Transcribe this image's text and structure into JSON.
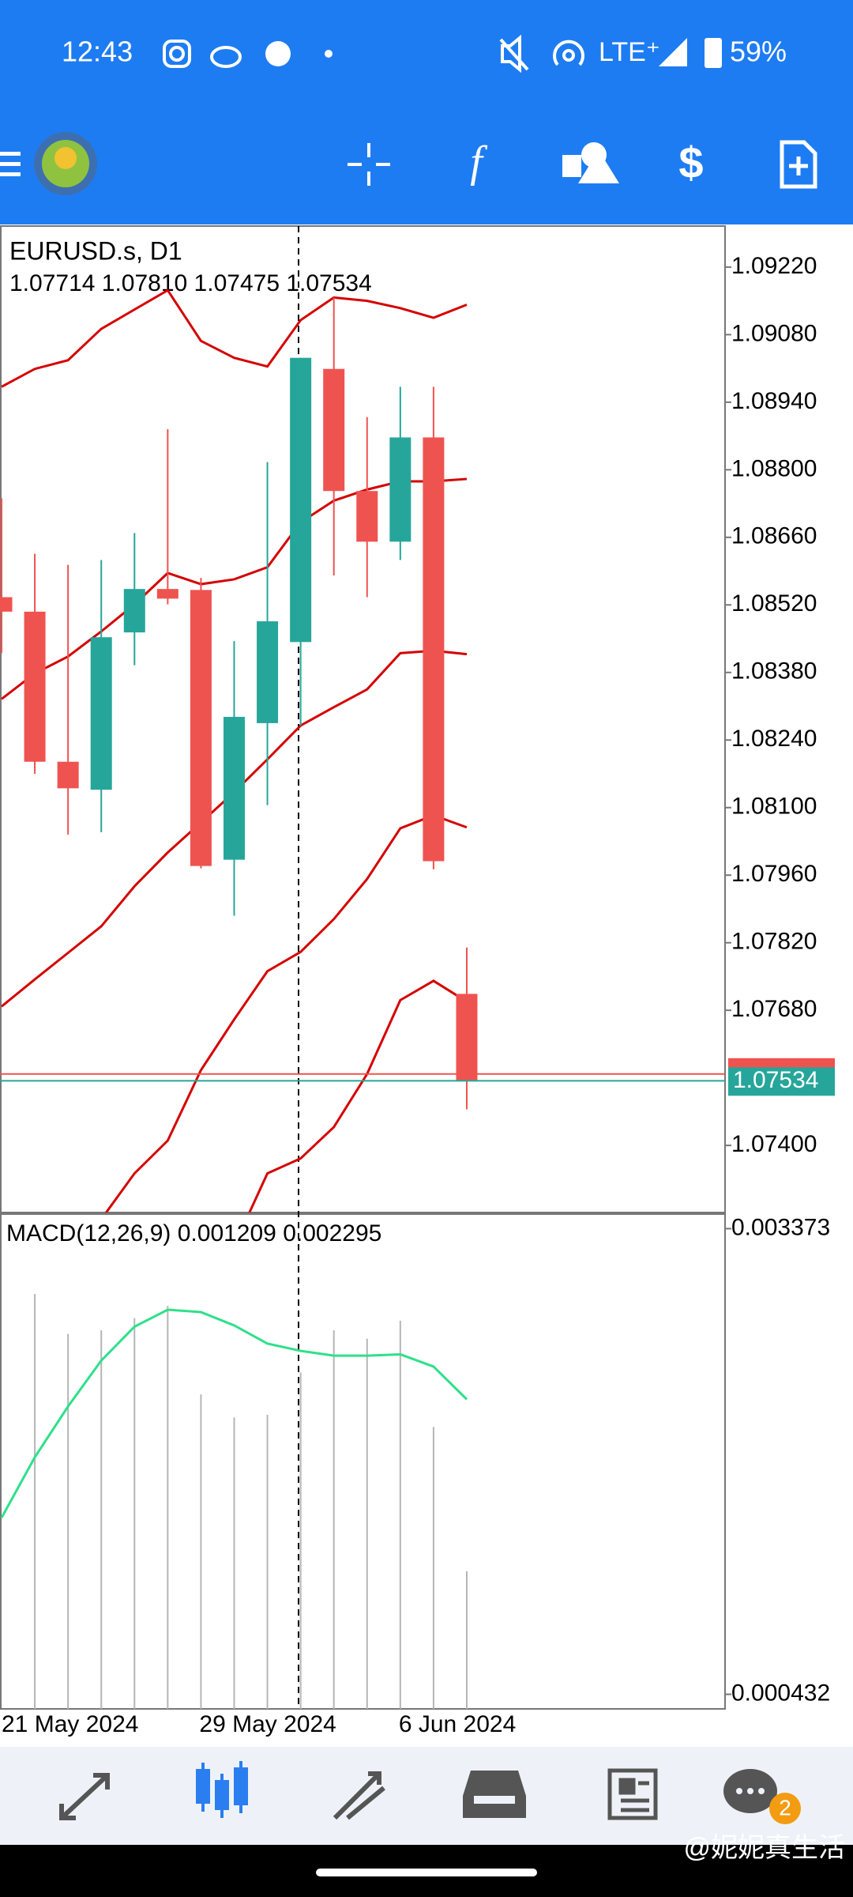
{
  "status_bar": {
    "time": "12:43",
    "network": "LTE⁺",
    "battery": "59%"
  },
  "notification_badge": "2",
  "watermark": "@妮妮真生活",
  "chart_data": [
    {
      "type": "candlestick",
      "title": "EURUSD.s, D1",
      "subtitle": "1.07714 1.07810 1.07475 1.07534",
      "categories": [
        "21 May 2024",
        null,
        null,
        null,
        null,
        null,
        "29 May 2024",
        null,
        null,
        null,
        null,
        null,
        "6 Jun 2024",
        null,
        null
      ],
      "open": [
        1.08536,
        1.08506,
        1.08195,
        1.08137,
        1.08463,
        1.08553,
        1.08551,
        1.07992,
        1.08275,
        1.08443,
        1.09009,
        1.08756,
        1.08651,
        1.08867,
        1.07714
      ],
      "high": [
        1.08741,
        1.08626,
        1.08603,
        1.08613,
        1.08669,
        1.08884,
        1.08576,
        1.08445,
        1.08816,
        1.09032,
        1.09157,
        1.08909,
        1.08972,
        1.08972,
        1.0781
      ],
      "low": [
        1.0842,
        1.0817,
        1.08044,
        1.08049,
        1.08395,
        1.08521,
        1.07974,
        1.07876,
        1.08105,
        1.0827,
        1.08581,
        1.08536,
        1.08613,
        1.07972,
        1.07475
      ],
      "close": [
        1.08506,
        1.08195,
        1.0814,
        1.08453,
        1.08553,
        1.08533,
        1.07979,
        1.08288,
        1.08486,
        1.09032,
        1.08756,
        1.08651,
        1.08867,
        1.07989,
        1.07534
      ],
      "up_color": "#26a69a",
      "down_color": "#ef5350",
      "series": [
        {
          "color": "#d50000",
          "values": [
            1.08972,
            1.09009,
            1.09027,
            1.09092,
            1.09132,
            1.09172,
            1.09067,
            1.09032,
            1.09014,
            1.0911,
            1.09157,
            1.0915,
            1.09135,
            1.09115,
            1.09142
          ]
        },
        {
          "color": "#d50000",
          "values": [
            1.08325,
            1.08378,
            1.08413,
            1.08465,
            1.08521,
            1.08586,
            1.08563,
            1.08573,
            1.08598,
            1.08691,
            1.08736,
            1.08759,
            1.08776,
            1.08776,
            1.08781
          ]
        },
        {
          "color": "#d50000",
          "values": [
            1.07688,
            1.07744,
            1.07799,
            1.07854,
            1.07937,
            1.08007,
            1.08069,
            1.08132,
            1.082,
            1.0827,
            1.08308,
            1.08345,
            1.0842,
            1.08425,
            1.08418
          ]
        },
        {
          "color": "#d50000",
          "values": [
            null,
            null,
            null,
            1.07247,
            1.07342,
            1.0741,
            1.07556,
            1.07661,
            1.07761,
            1.07801,
            1.07869,
            1.07952,
            1.08057,
            1.08084,
            1.08059
          ]
        },
        {
          "color": "#d50000",
          "values": [
            null,
            null,
            null,
            null,
            null,
            null,
            null,
            1.07192,
            1.07342,
            1.07373,
            1.07438,
            1.07548,
            1.07701,
            1.07741,
            1.07698
          ]
        }
      ],
      "ylim": [
        1.07261,
        1.09305
      ],
      "yticks": [
        {
          "value": 1.0922,
          "label": "1.09220"
        },
        {
          "value": 1.0908,
          "label": "1.09080"
        },
        {
          "value": 1.0894,
          "label": "1.08940"
        },
        {
          "value": 1.088,
          "label": "1.08800"
        },
        {
          "value": 1.0866,
          "label": "1.08660"
        },
        {
          "value": 1.0852,
          "label": "1.08520"
        },
        {
          "value": 1.0838,
          "label": "1.08380"
        },
        {
          "value": 1.0824,
          "label": "1.08240"
        },
        {
          "value": 1.081,
          "label": "1.08100"
        },
        {
          "value": 1.0796,
          "label": "1.07960"
        },
        {
          "value": 1.0782,
          "label": "1.07820"
        },
        {
          "value": 1.0768,
          "label": "1.07680"
        },
        {
          "value": 1.074,
          "label": "1.07400"
        }
      ],
      "ask_line": 1.07548,
      "ask_color": "#ef5350",
      "bid_line": 1.07534,
      "bid_color": "#26a69a"
    },
    {
      "type": "macd",
      "title": "MACD(12,26,9) 0.001209 0.002295",
      "values": [
        null,
        0.00296,
        0.002708,
        0.002731,
        0.002808,
        0.002884,
        0.002326,
        0.002181,
        0.002197,
        0.002464,
        0.002731,
        0.002678,
        0.002792,
        0.00212,
        0.001209
      ],
      "color": "#b5b5b5",
      "series": [
        {
          "color": "#2ee08a",
          "values": [
            0.001547,
            0.001929,
            0.00225,
            0.00254,
            0.002754,
            0.002861,
            0.002846,
            0.002762,
            0.002647,
            0.002601,
            0.002571,
            0.002571,
            0.002579,
            0.002502,
            0.002295
          ]
        }
      ],
      "ylim": [
        0.00034,
        0.003465
      ],
      "yticks": [
        0.003373,
        0.000432
      ]
    }
  ]
}
